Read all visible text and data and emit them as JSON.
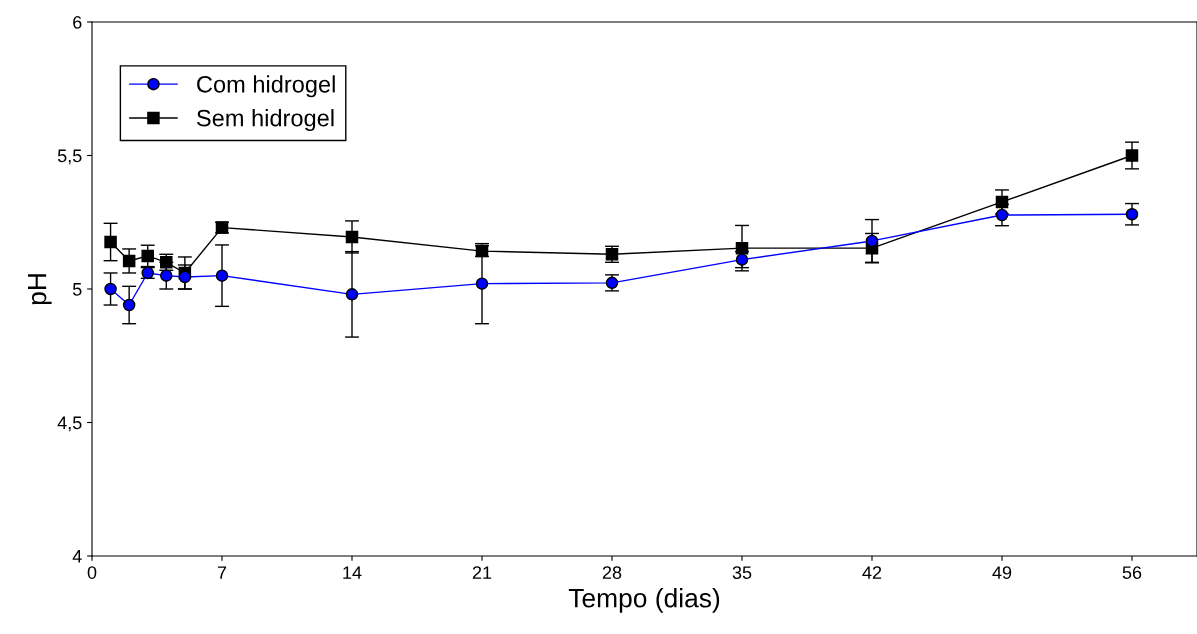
{
  "chart_data": {
    "type": "line",
    "xlabel": "Tempo (dias)",
    "ylabel": "pH",
    "x": [
      1,
      2,
      3,
      4,
      5,
      7,
      14,
      21,
      28,
      35,
      42,
      49,
      56
    ],
    "series": [
      {
        "name": "Com hidrogel",
        "color": "#0000ff",
        "marker": "circle",
        "values": [
          5.0,
          4.94,
          5.06,
          5.05,
          5.045,
          5.05,
          4.98,
          5.02,
          5.023,
          5.11,
          5.18,
          5.277,
          5.28
        ],
        "errors": [
          0.06,
          0.07,
          0.02,
          0.05,
          0.045,
          0.115,
          0.16,
          0.15,
          0.03,
          0.03,
          0.08,
          0.04,
          0.04
        ]
      },
      {
        "name": "Sem hidrogel",
        "color": "#000000",
        "marker": "square",
        "values": [
          5.176,
          5.105,
          5.124,
          5.1,
          5.06,
          5.23,
          5.195,
          5.142,
          5.13,
          5.153,
          5.153,
          5.326,
          5.5
        ],
        "errors": [
          0.07,
          0.045,
          0.04,
          0.03,
          0.06,
          0.02,
          0.06,
          0.02,
          0.03,
          0.085,
          0.055,
          0.045,
          0.05
        ]
      }
    ],
    "xlim": [
      0,
      59.5
    ],
    "ylim": [
      4,
      6
    ],
    "xticks": [
      0,
      7,
      14,
      21,
      28,
      35,
      42,
      49,
      56
    ],
    "yticks": [
      4,
      {
        "value": 4.5,
        "label": "4,5"
      },
      5,
      {
        "value": 5.5,
        "label": "5,5"
      },
      6
    ],
    "grid": false,
    "legend": "top left"
  }
}
